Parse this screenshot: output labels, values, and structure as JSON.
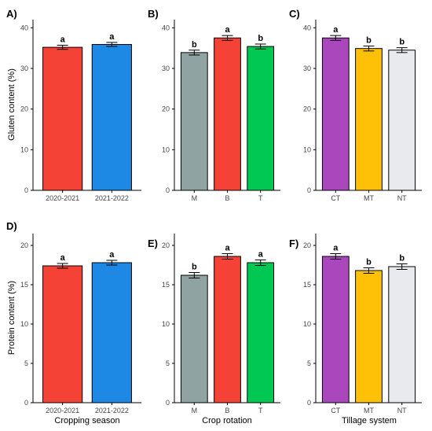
{
  "figure": {
    "x_titles": {
      "season": "Cropping season",
      "rotation": "Crop rotation",
      "tillage": "Tillage system"
    },
    "y_titles": {
      "gluten": "Gluten content (%)",
      "protein": "Protein content (%)"
    }
  },
  "chart_data": [
    {
      "panel": "A)",
      "type": "bar",
      "row": "gluten",
      "group": "season",
      "categories": [
        "2020-2021",
        "2021-2022"
      ],
      "values": [
        35.2,
        35.9
      ],
      "errors": [
        0.5,
        0.5
      ],
      "letters": [
        "a",
        "a"
      ],
      "colors": [
        "#f44336",
        "#1e88e5"
      ],
      "ylim": [
        0,
        42
      ],
      "yticks": [
        0,
        10,
        20,
        30,
        40
      ],
      "xlabel": "",
      "ylabel": "Gluten content (%)",
      "grid": false
    },
    {
      "panel": "B)",
      "type": "bar",
      "row": "gluten",
      "group": "rotation",
      "categories": [
        "M",
        "B",
        "T"
      ],
      "values": [
        33.9,
        37.5,
        35.4
      ],
      "errors": [
        0.6,
        0.6,
        0.6
      ],
      "letters": [
        "b",
        "a",
        "b"
      ],
      "colors": [
        "#8fa3a3",
        "#f44336",
        "#00c853"
      ],
      "ylim": [
        0,
        42
      ],
      "yticks": [
        0,
        10,
        20,
        30,
        40
      ],
      "xlabel": "",
      "ylabel": "",
      "grid": false
    },
    {
      "panel": "C)",
      "type": "bar",
      "row": "gluten",
      "group": "tillage",
      "categories": [
        "CT",
        "MT",
        "NT"
      ],
      "values": [
        37.5,
        34.9,
        34.5
      ],
      "errors": [
        0.6,
        0.6,
        0.6
      ],
      "letters": [
        "a",
        "b",
        "b"
      ],
      "colors": [
        "#ab47bc",
        "#ffc107",
        "#e8eaed"
      ],
      "ylim": [
        0,
        42
      ],
      "yticks": [
        0,
        10,
        20,
        30,
        40
      ],
      "xlabel": "",
      "ylabel": "",
      "grid": false
    },
    {
      "panel": "D)",
      "type": "bar",
      "row": "protein",
      "group": "season",
      "categories": [
        "2020-2021",
        "2021-2022"
      ],
      "values": [
        17.4,
        17.8
      ],
      "errors": [
        0.3,
        0.3
      ],
      "letters": [
        "a",
        "a"
      ],
      "colors": [
        "#f44336",
        "#1e88e5"
      ],
      "ylim": [
        0,
        21.5
      ],
      "yticks": [
        0,
        5,
        10,
        15,
        20
      ],
      "xlabel": "Cropping season",
      "ylabel": "Protein content (%)",
      "grid": false
    },
    {
      "panel": "E)",
      "type": "bar",
      "row": "protein",
      "group": "rotation",
      "categories": [
        "M",
        "B",
        "T"
      ],
      "values": [
        16.2,
        18.6,
        17.8
      ],
      "errors": [
        0.35,
        0.35,
        0.35
      ],
      "letters": [
        "b",
        "a",
        "a"
      ],
      "colors": [
        "#8fa3a3",
        "#f44336",
        "#00c853"
      ],
      "ylim": [
        0,
        21.5
      ],
      "yticks": [
        0,
        5,
        10,
        15,
        20
      ],
      "xlabel": "Crop rotation",
      "ylabel": "",
      "grid": false
    },
    {
      "panel": "F)",
      "type": "bar",
      "row": "protein",
      "group": "tillage",
      "categories": [
        "CT",
        "MT",
        "NT"
      ],
      "values": [
        18.6,
        16.8,
        17.3
      ],
      "errors": [
        0.35,
        0.35,
        0.35
      ],
      "letters": [
        "a",
        "b",
        "b"
      ],
      "colors": [
        "#ab47bc",
        "#ffc107",
        "#e8eaed"
      ],
      "ylim": [
        0,
        21.5
      ],
      "yticks": [
        0,
        5,
        10,
        15,
        20
      ],
      "xlabel": "Tillage system",
      "ylabel": "",
      "grid": false
    }
  ]
}
